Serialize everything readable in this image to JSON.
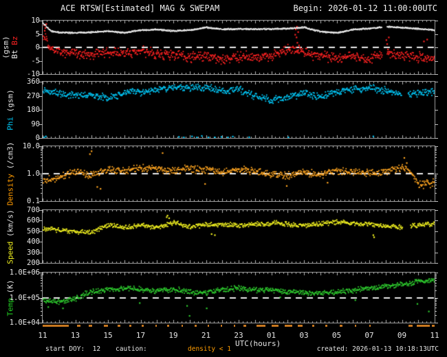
{
  "header": {
    "title": "ACE RTSW[Estimated] MAG & SWEPAM",
    "begin": "Begin: 2026-01-12 11:00:00UTC"
  },
  "footer": {
    "start_doy": "start DOY:  12",
    "caution_label": "caution:",
    "caution_value": "density < 1",
    "caution_value_color": "#ff9c00",
    "created": "created: 2026-01-13 10:18:13UTC"
  },
  "caution_strip": {
    "meaning": "density < 1",
    "color": "#c87820",
    "segments": [
      [
        11.0,
        12.6
      ],
      [
        13.1,
        13.3
      ],
      [
        13.8,
        14.05
      ],
      [
        14.75,
        15.0
      ],
      [
        15.6,
        15.75
      ],
      [
        16.3,
        16.45
      ],
      [
        17.05,
        17.2
      ],
      [
        17.9,
        18.0
      ],
      [
        18.6,
        18.75
      ],
      [
        19.5,
        19.6
      ],
      [
        20.3,
        20.45
      ],
      [
        21.1,
        21.2
      ],
      [
        21.9,
        22.0
      ],
      [
        22.7,
        22.8
      ],
      [
        23.3,
        23.45
      ],
      [
        24.1,
        24.65
      ],
      [
        25.0,
        25.45
      ],
      [
        25.8,
        26.3
      ],
      [
        26.6,
        26.9
      ],
      [
        27.5,
        27.65
      ],
      [
        28.3,
        28.45
      ],
      [
        29.2,
        29.35
      ],
      [
        30.1,
        30.2
      ],
      [
        31.0,
        31.1
      ],
      [
        33.4,
        33.65
      ],
      [
        33.9,
        34.7
      ],
      [
        34.85,
        35.0
      ]
    ]
  },
  "chart_data": {
    "type": "scatter",
    "xlabel": "UTC(hours)",
    "x_range_hours": [
      11,
      35
    ],
    "x_ticklabels": [
      "11",
      "13",
      "15",
      "17",
      "19",
      "21",
      "23",
      "01",
      "03",
      "05",
      "07",
      "09",
      "11"
    ],
    "x_tickhours": [
      11,
      13,
      15,
      17,
      19,
      21,
      23,
      25,
      27,
      29,
      31,
      33,
      35
    ],
    "panels": [
      {
        "id": "bt-bz",
        "label": "Bt Bz",
        "unit": "(gsm)",
        "two_line": true,
        "label_parts": [
          {
            "text": "Bt",
            "color": "#f2f2f2"
          },
          {
            "text": "Bz",
            "color": "#ff2222"
          }
        ],
        "ylim": [
          -10,
          10
        ],
        "log": false,
        "threshold": 0,
        "yticks": [
          10,
          5,
          0,
          -5,
          -10
        ],
        "ytick_labels": [
          "10",
          "5",
          "0",
          "-5",
          "-10"
        ],
        "series": [
          {
            "name": "Bz",
            "color": "#ff2222",
            "dot": 1.8,
            "dt": 0.028,
            "jitter": 1.35,
            "anchors_x": [
              11,
              11.5,
              12,
              13,
              14,
              15,
              16,
              17,
              18,
              19,
              20,
              21,
              22,
              23,
              24,
              25,
              26,
              27,
              28,
              29,
              30,
              31,
              32,
              33,
              34,
              35
            ],
            "anchors_y": [
              4.5,
              -0.5,
              -1.5,
              -2.2,
              -2.5,
              -1.5,
              -2.0,
              -1.0,
              -2.2,
              -2.6,
              -3.6,
              -3.0,
              -4.2,
              -3.4,
              -3.0,
              -3.2,
              -0.5,
              -2.0,
              -3.0,
              -3.6,
              -3.0,
              -4.2,
              -1.5,
              -3.0,
              -3.6,
              -4.2
            ],
            "gaps": [
              [
                31.75,
                32.05
              ]
            ],
            "outliers": [
              [
                11.05,
                8.5
              ],
              [
                11.08,
                6.5
              ],
              [
                11.12,
                7.5
              ],
              [
                11.18,
                9.0
              ],
              [
                26.42,
                5
              ],
              [
                26.45,
                7
              ],
              [
                26.5,
                4
              ],
              [
                26.52,
                8
              ],
              [
                26.55,
                2
              ],
              [
                26.6,
                6
              ],
              [
                26.65,
                1
              ],
              [
                32.0,
                3
              ],
              [
                32.05,
                1.5
              ],
              [
                32.1,
                -0.5
              ],
              [
                32.15,
                4
              ],
              [
                34.3,
                2.5
              ],
              [
                34.5,
                3.2
              ]
            ]
          },
          {
            "name": "Bt",
            "color": "#f2f2f2",
            "dot": 1.2,
            "dt": 0.012,
            "jitter": 0.22,
            "anchors_x": [
              11,
              11.5,
              12,
              13,
              14,
              15,
              16,
              17,
              18,
              19,
              20,
              21,
              22,
              23,
              24,
              25,
              26,
              27,
              28,
              29,
              30,
              31,
              32,
              33,
              34,
              35
            ],
            "anchors_y": [
              9.2,
              6.2,
              5.7,
              5.6,
              5.8,
              6.2,
              5.6,
              6.6,
              6.8,
              6.3,
              6.6,
              7.6,
              6.9,
              7.0,
              7.0,
              7.0,
              7.2,
              7.6,
              6.0,
              5.6,
              6.8,
              7.2,
              7.9,
              7.5,
              7.1,
              6.6
            ],
            "gaps": [
              [
                31.75,
                32.05
              ]
            ],
            "outliers": []
          }
        ]
      },
      {
        "id": "phi",
        "label": "Phi",
        "unit": "(gsm)",
        "two_line": false,
        "label_color": "#00c8f8",
        "ylim": [
          0,
          360
        ],
        "log": false,
        "threshold": null,
        "yticks": [
          360,
          270,
          180,
          90,
          0
        ],
        "ytick_labels": [
          "360",
          "270",
          "180",
          "90",
          "0"
        ],
        "series": [
          {
            "name": "Phi",
            "color": "#00c8f8",
            "dot": 1.8,
            "dt": 0.03,
            "jitter": 16,
            "anchors_x": [
              11,
              12,
              13,
              14,
              15,
              16,
              17,
              18,
              19,
              20,
              21,
              22,
              23,
              24,
              25,
              26,
              27,
              28,
              29,
              30,
              31,
              32,
              33,
              34,
              35
            ],
            "anchors_y": [
              305,
              290,
              272,
              282,
              258,
              292,
              300,
              312,
              330,
              322,
              330,
              302,
              312,
              268,
              248,
              266,
              290,
              262,
              300,
              316,
              322,
              306,
              282,
              290,
              300
            ],
            "gaps": [
              [
                32.95,
                33.35
              ]
            ],
            "outliers": [
              [
                11.05,
                8
              ],
              [
                11.15,
                15
              ],
              [
                19.3,
                12
              ],
              [
                19.6,
                6
              ],
              [
                20.1,
                15
              ],
              [
                20.4,
                4
              ],
              [
                20.7,
                18
              ],
              [
                21.1,
                8
              ],
              [
                21.5,
                3
              ],
              [
                21.9,
                12
              ],
              [
                22.3,
                6
              ],
              [
                22.6,
                14
              ],
              [
                23.6,
                10
              ],
              [
                26.0,
                3
              ],
              [
                31.2,
                15
              ]
            ]
          }
        ]
      },
      {
        "id": "density",
        "label": "Density",
        "unit": "(/cm3)",
        "two_line": false,
        "label_color": "#ff9a00",
        "ylim": [
          0.1,
          10
        ],
        "log": true,
        "threshold": 1.0,
        "yticks": [
          10,
          1,
          0.1
        ],
        "ytick_labels": [
          "10.0",
          "1.0",
          "0.1"
        ],
        "series": [
          {
            "name": "Density",
            "color": "#ffa520",
            "dot": 1.8,
            "dt": 0.03,
            "jitter": 0.16,
            "anchors_x": [
              11,
              12,
              13,
              14,
              15,
              16,
              17,
              18,
              19,
              20,
              21,
              22,
              23,
              24,
              25,
              26,
              27,
              28,
              29,
              30,
              31,
              32,
              33,
              34,
              35
            ],
            "anchors_y": [
              0.55,
              0.8,
              1.2,
              0.9,
              1.5,
              1.3,
              1.8,
              1.5,
              1.4,
              1.6,
              1.4,
              1.2,
              1.5,
              1.3,
              1.0,
              0.9,
              1.2,
              1.0,
              1.3,
              1.2,
              1.1,
              1.2,
              1.8,
              0.4,
              0.5
            ],
            "gaps": [],
            "outliers": [
              [
                13.85,
                5.5
              ],
              [
                13.95,
                7.0
              ],
              [
                18.3,
                6.0
              ],
              [
                33.1,
                4.0
              ],
              [
                33.25,
                2.6
              ],
              [
                20.9,
                0.45
              ],
              [
                25.9,
                0.38
              ],
              [
                28.4,
                0.5
              ],
              [
                14.3,
                0.35
              ],
              [
                14.5,
                0.3
              ]
            ]
          }
        ]
      },
      {
        "id": "speed",
        "label": "Speed",
        "unit": "(km/s)",
        "two_line": false,
        "label_color": "#f2f220",
        "ylim": [
          200,
          700
        ],
        "log": false,
        "threshold": null,
        "yticks": [
          700,
          600,
          500,
          400,
          300,
          200
        ],
        "ytick_labels": [
          "700",
          "600",
          "500",
          "400",
          "300",
          "200"
        ],
        "series": [
          {
            "name": "Speed",
            "color": "#f2f220",
            "dot": 1.8,
            "dt": 0.03,
            "jitter": 16,
            "anchors_x": [
              11,
              12,
              13,
              14,
              15,
              16,
              17,
              18,
              19,
              20,
              21,
              22,
              23,
              24,
              25,
              26,
              27,
              28,
              29,
              30,
              31,
              32,
              33,
              34,
              35
            ],
            "anchors_y": [
              530,
              515,
              500,
              495,
              565,
              540,
              560,
              548,
              585,
              548,
              562,
              572,
              560,
              572,
              582,
              572,
              562,
              580,
              592,
              582,
              572,
              552,
              545,
              562,
              582
            ],
            "gaps": [
              [
                33.0,
                33.5
              ]
            ],
            "outliers": [
              [
                18.55,
                640
              ],
              [
                18.6,
                655
              ],
              [
                18.7,
                630
              ],
              [
                31.2,
                470
              ],
              [
                31.25,
                450
              ],
              [
                21.3,
                480
              ],
              [
                21.5,
                470
              ]
            ]
          }
        ]
      },
      {
        "id": "temp",
        "label": "Temp",
        "unit": "(K)",
        "two_line": false,
        "label_color": "#22cc22",
        "ylim": [
          10000,
          1000000
        ],
        "log": true,
        "threshold": 100000,
        "yticks": [
          1000000,
          100000,
          10000
        ],
        "ytick_labels": [
          "1.0E+06",
          "1.0E+05",
          "1.0E+04"
        ],
        "series": [
          {
            "name": "Temp",
            "color": "#2ecc2e",
            "dot": 1.8,
            "dt": 0.03,
            "jitter": 0.13,
            "anchors_x": [
              11,
              12,
              13,
              14,
              15,
              16,
              17,
              18,
              19,
              20,
              21,
              22,
              23,
              24,
              25,
              26,
              27,
              28,
              29,
              30,
              31,
              32,
              33,
              34,
              35
            ],
            "anchors_y": [
              80000,
              70000,
              95000,
              180000,
              220000,
              250000,
              220000,
              200000,
              220000,
              180000,
              160000,
              220000,
              250000,
              220000,
              200000,
              180000,
              160000,
              150000,
              180000,
              200000,
              250000,
              300000,
              350000,
              450000,
              520000
            ],
            "gaps": [],
            "outliers": [
              [
                16.9,
                65000
              ],
              [
                19.8,
                50000
              ],
              [
                21.0,
                40000
              ],
              [
                25.5,
                110000
              ],
              [
                30.1,
                85000
              ],
              [
                33.9,
                60000
              ],
              [
                34.6,
                30000
              ],
              [
                11.3,
                45000
              ],
              [
                12.2,
                40000
              ],
              [
                19.95,
                20000
              ]
            ]
          }
        ]
      }
    ]
  }
}
